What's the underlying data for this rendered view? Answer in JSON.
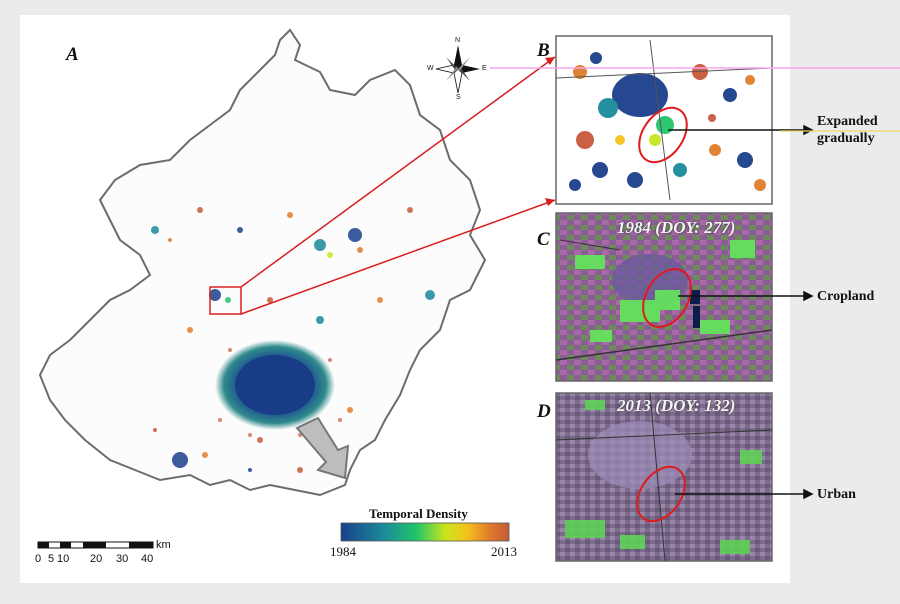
{
  "panels": {
    "a": "A",
    "b": "B",
    "c": "C",
    "d": "D"
  },
  "insets": {
    "c_title": "1984 (DOY: 277)",
    "d_title": "2013 (DOY: 132)"
  },
  "annotations": {
    "expanded_line1": "Expanded",
    "expanded_line2": "gradually",
    "cropland": "Cropland",
    "urban": "Urban"
  },
  "legend": {
    "title": "Temporal Density",
    "start": "1984",
    "end": "2013",
    "colors": [
      "#1a3f8c",
      "#1b8a9a",
      "#22c46a",
      "#c8e61c",
      "#f5c21b",
      "#e07c2a",
      "#c75a3a"
    ]
  },
  "scalebar": {
    "unit": "km",
    "ticks": [
      "0",
      "5",
      "10",
      "20",
      "30",
      "40"
    ]
  },
  "compass": {
    "n": "N",
    "s": "S",
    "e": "E",
    "w": "W"
  },
  "icons": [
    "north-arrow-compass",
    "direction-arrow"
  ]
}
